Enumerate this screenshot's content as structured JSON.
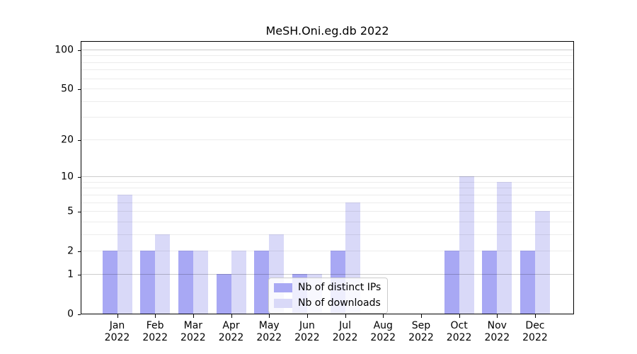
{
  "title": "MeSH.Oni.eg.db 2022",
  "colors": {
    "distinct_ips": "#a8a8f4",
    "downloads": "#d9d9f8",
    "axis": "#000000",
    "legend_border": "#cbcbcb"
  },
  "legend": {
    "items": [
      {
        "label": "Nb of distinct IPs"
      },
      {
        "label": "Nb of downloads"
      }
    ]
  },
  "chart_data": {
    "type": "bar",
    "title": "MeSH.Oni.eg.db 2022",
    "categories": [
      "Jan 2022",
      "Feb 2022",
      "Mar 2022",
      "Apr 2022",
      "May 2022",
      "Jun 2022",
      "Jul 2022",
      "Aug 2022",
      "Sep 2022",
      "Oct 2022",
      "Nov 2022",
      "Dec 2022"
    ],
    "month_labels": [
      "Jan",
      "Feb",
      "Mar",
      "Apr",
      "May",
      "Jun",
      "Jul",
      "Aug",
      "Sep",
      "Oct",
      "Nov",
      "Dec"
    ],
    "year_label": "2022",
    "series": [
      {
        "name": "Nb of distinct IPs",
        "color": "#a8a8f4",
        "values": [
          2,
          2,
          2,
          1,
          2,
          1,
          2,
          0,
          0,
          2,
          2,
          2
        ]
      },
      {
        "name": "Nb of downloads",
        "color": "#d9d9f8",
        "values": [
          7,
          3,
          2,
          2,
          3,
          1,
          6,
          0,
          0,
          10,
          9,
          5
        ]
      }
    ],
    "xlabel": "",
    "ylabel": "",
    "yscale": "log1p",
    "yticks": [
      0,
      1,
      2,
      5,
      10,
      20,
      50,
      100
    ],
    "major_grid_values": [
      1,
      10,
      100
    ],
    "minor_grid_values": [
      2,
      3,
      4,
      5,
      6,
      7,
      8,
      9,
      20,
      30,
      40,
      50,
      60,
      70,
      80,
      90
    ],
    "ylim": [
      0,
      117
    ],
    "grid": true,
    "legend_position": "lower center-right, inside axes"
  }
}
